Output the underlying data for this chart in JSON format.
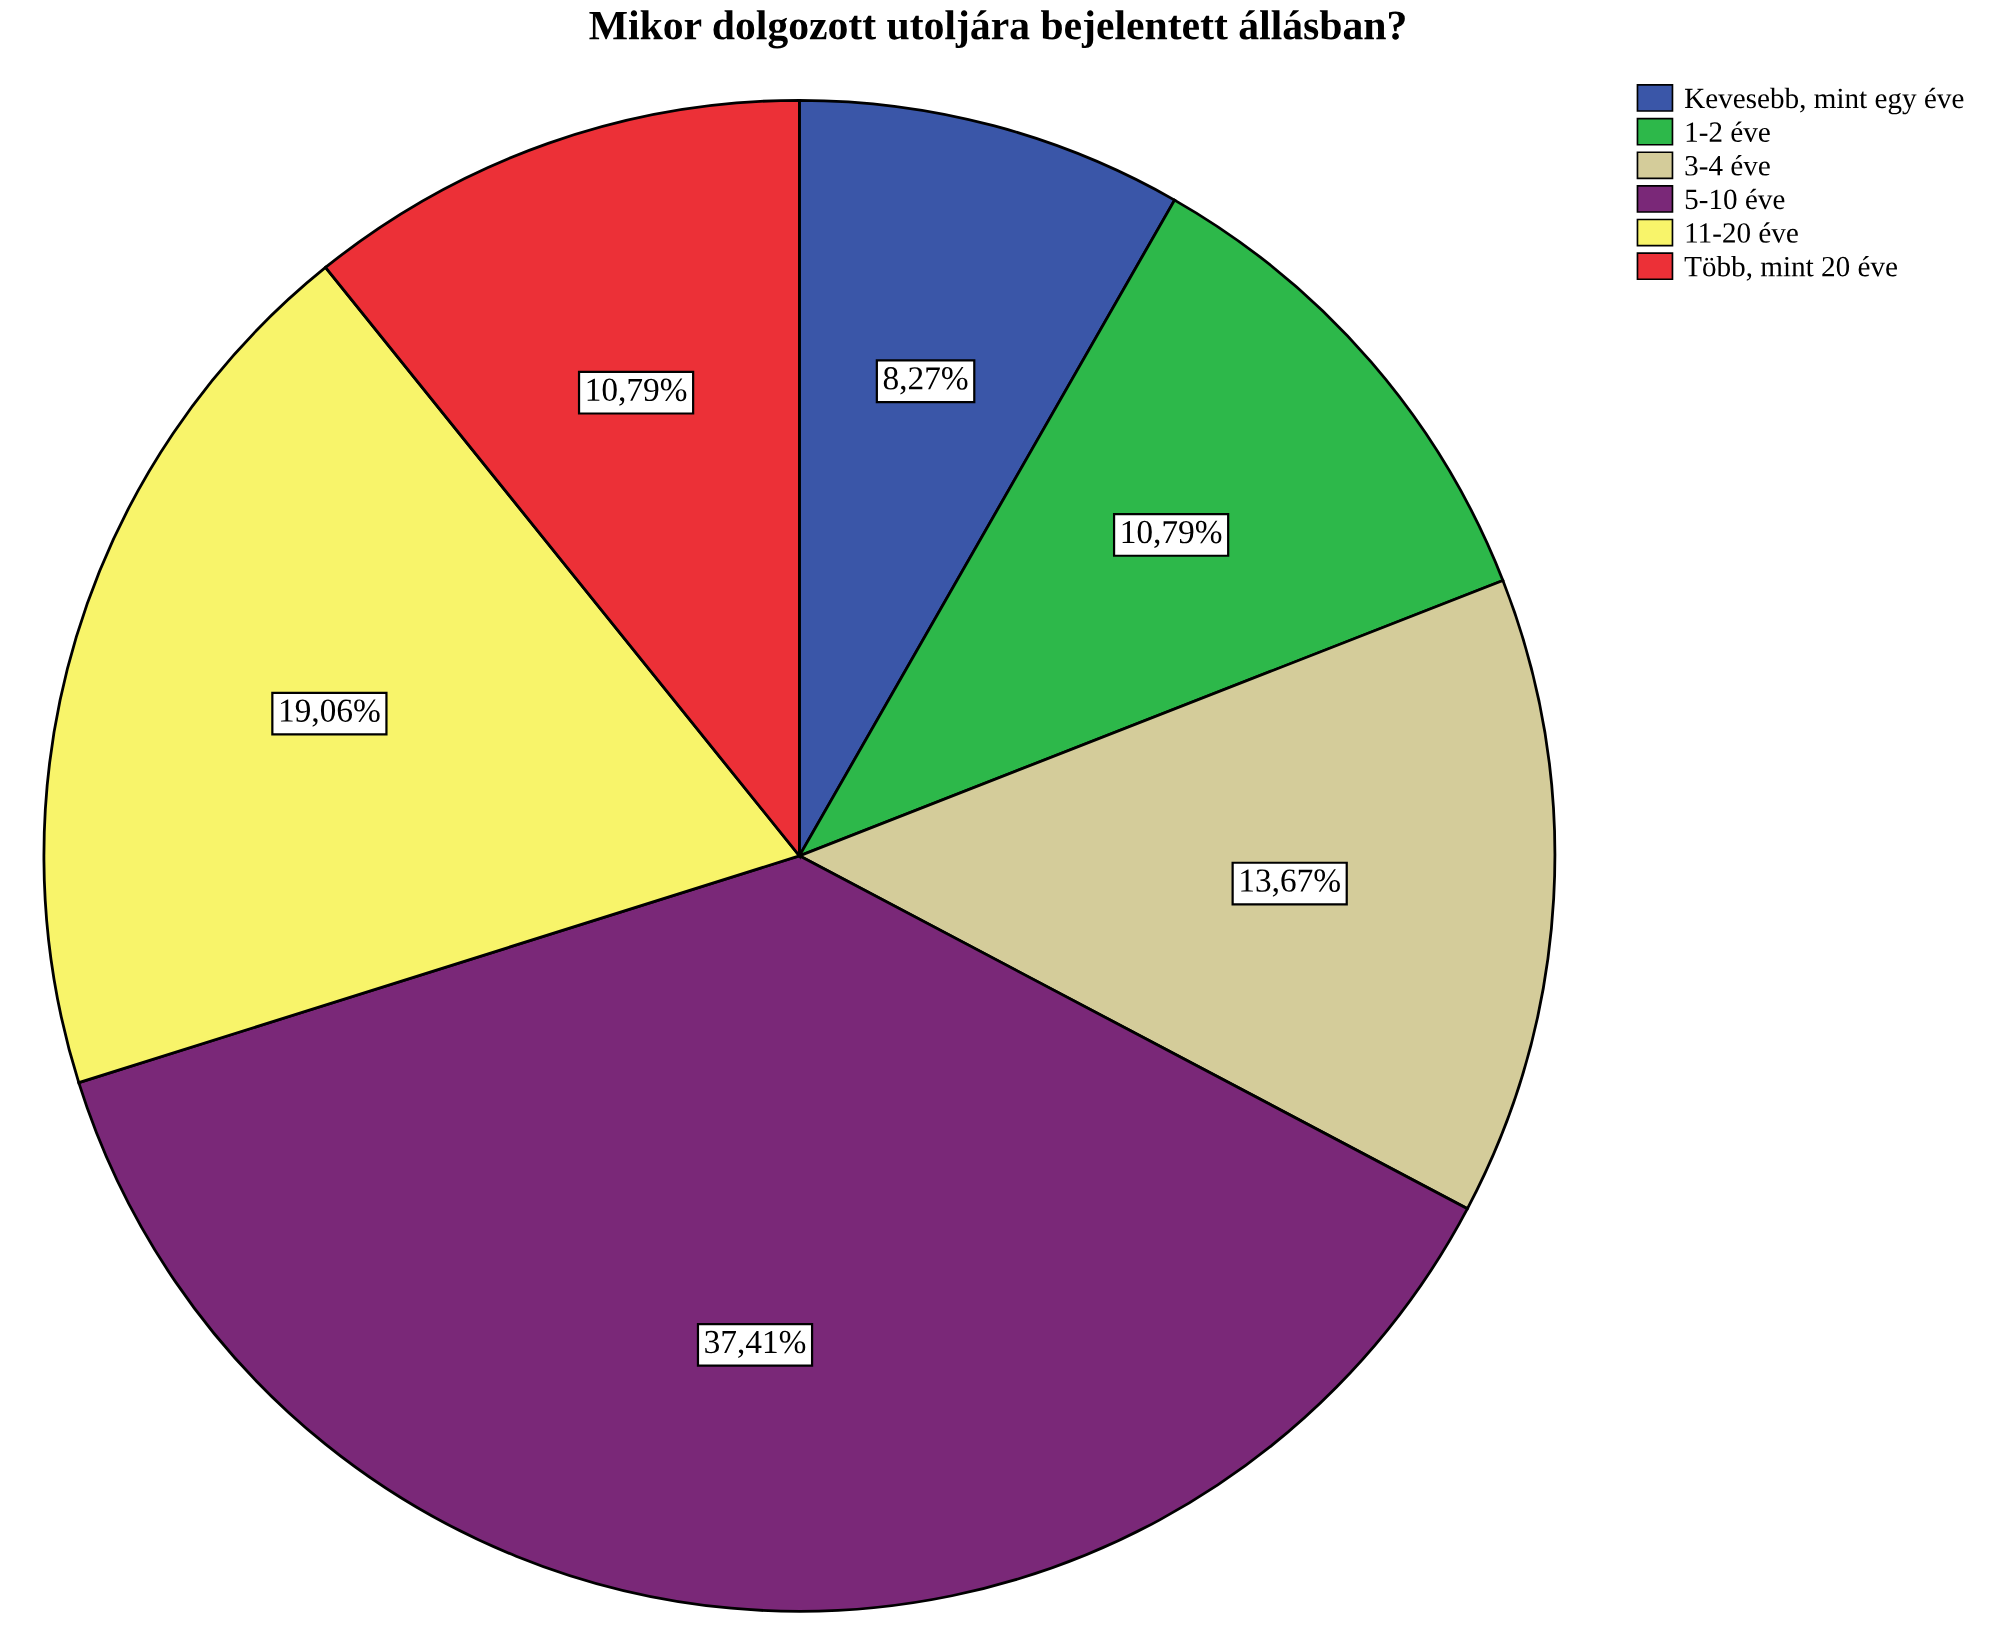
{
  "chart_data": {
    "type": "pie",
    "title": "Mikor dolgozott utoljára bejelentett állásban?",
    "categories": [
      "Kevesebb, mint egy éve",
      "1-2 éve",
      "3-4 éve",
      "5-10 éve",
      "11-20 éve",
      "Több, mint 20 éve"
    ],
    "values": [
      8.27,
      10.79,
      13.67,
      37.41,
      19.06,
      10.79
    ],
    "value_labels": [
      "8,27%",
      "10,79%",
      "13,67%",
      "37,41%",
      "19,06%",
      "10,79%"
    ],
    "colors": [
      "#3a56a8",
      "#2db84a",
      "#d4cc9a",
      "#7a2878",
      "#f8f46a",
      "#ec3037"
    ],
    "legend": "top right"
  }
}
